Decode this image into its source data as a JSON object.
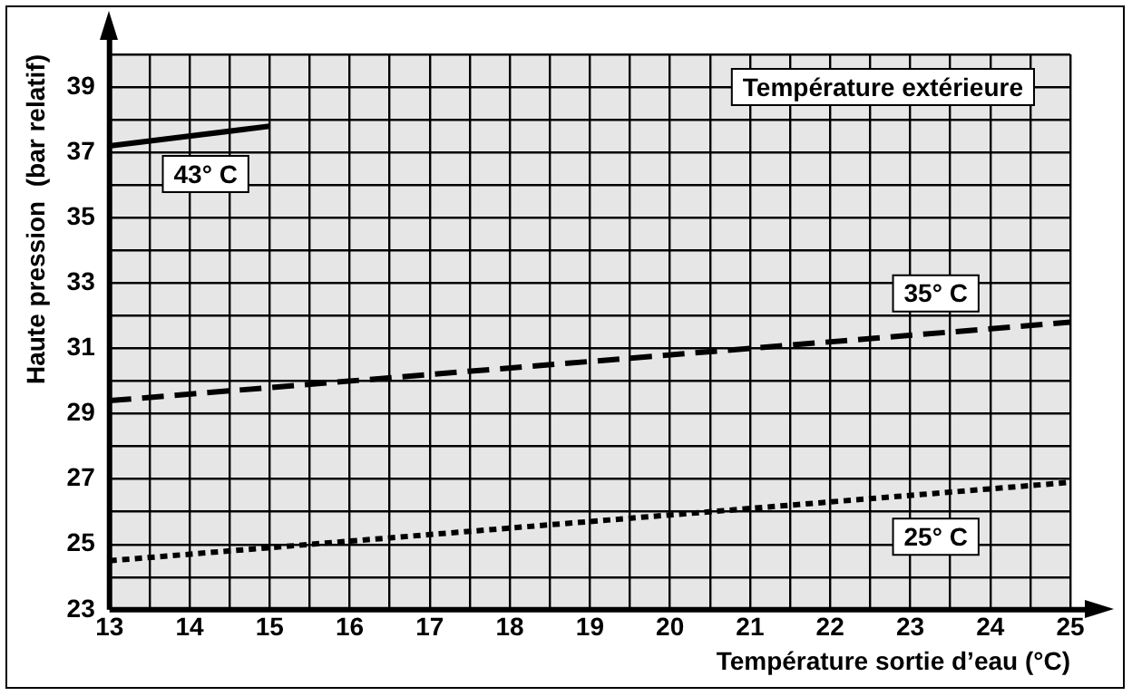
{
  "chart_data": {
    "type": "line",
    "xlabel": "Température sortie d’eau (°C)",
    "ylabel": "Haute pression  (bar relatif)",
    "annotations": [
      "Température extérieure"
    ],
    "xlim": [
      13,
      25
    ],
    "ylim": [
      23,
      40
    ],
    "xticks": [
      13,
      {
        "value": 13.5,
        "label": null
      },
      14,
      {
        "value": 14.5,
        "label": null
      },
      15,
      {
        "value": 15.5,
        "label": null
      },
      16,
      {
        "value": 16.5,
        "label": null
      },
      17,
      {
        "value": 17.5,
        "label": null
      },
      18,
      {
        "value": 18.5,
        "label": null
      },
      19,
      {
        "value": 19.5,
        "label": null
      },
      20,
      {
        "value": 20.5,
        "label": null
      },
      21,
      {
        "value": 21.5,
        "label": null
      },
      22,
      {
        "value": 22.5,
        "label": null
      },
      23,
      {
        "value": 23.5,
        "label": null
      },
      24,
      {
        "value": 24.5,
        "label": null
      },
      25
    ],
    "yticks": [
      23,
      {
        "value": 24,
        "label": null
      },
      25,
      {
        "value": 26,
        "label": null
      },
      27,
      {
        "value": 28,
        "label": null
      },
      29,
      {
        "value": 30,
        "label": null
      },
      31,
      {
        "value": 32,
        "label": null
      },
      33,
      {
        "value": 34,
        "label": null
      },
      35,
      {
        "value": 36,
        "label": null
      },
      37,
      {
        "value": 38,
        "label": null
      },
      39,
      {
        "value": 40,
        "label": null
      }
    ],
    "grid": true,
    "marker": "none",
    "series": [
      {
        "name": "43° C",
        "color": "#000000",
        "line_style": "solid",
        "x": [
          13,
          15
        ],
        "values": [
          37.2,
          37.8
        ]
      },
      {
        "name": "35° C",
        "color": "#000000",
        "line_style": "dashed",
        "x": [
          13,
          25
        ],
        "values": [
          29.4,
          31.8
        ]
      },
      {
        "name": "25° C",
        "color": "#000000",
        "line_style": "dotted",
        "x": [
          13,
          25
        ],
        "values": [
          24.5,
          26.9
        ]
      }
    ]
  }
}
